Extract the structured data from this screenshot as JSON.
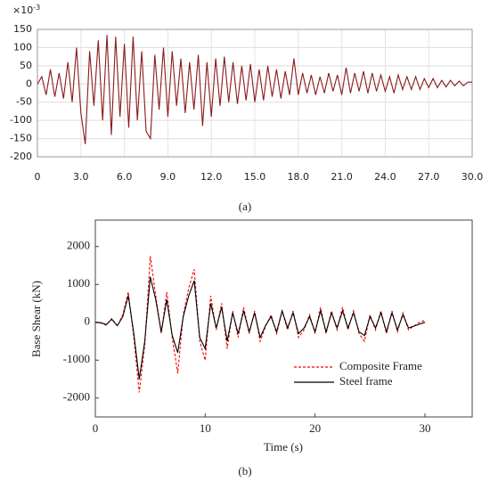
{
  "chart_data": [
    {
      "type": "line",
      "caption": "(a)",
      "y_multiplier": {
        "base": "×10",
        "exponent": "-3"
      },
      "x": [
        0,
        0.3,
        0.6,
        0.9,
        1.2,
        1.5,
        1.8,
        2.1,
        2.4,
        2.7,
        3.0,
        3.3,
        3.6,
        3.9,
        4.2,
        4.5,
        4.8,
        5.1,
        5.4,
        5.7,
        6.0,
        6.3,
        6.6,
        6.9,
        7.2,
        7.5,
        7.8,
        8.1,
        8.4,
        8.7,
        9.0,
        9.3,
        9.6,
        9.9,
        10.2,
        10.5,
        10.8,
        11.1,
        11.4,
        11.7,
        12.0,
        12.3,
        12.6,
        12.9,
        13.2,
        13.5,
        13.8,
        14.1,
        14.4,
        14.7,
        15.0,
        15.3,
        15.6,
        15.9,
        16.2,
        16.5,
        16.8,
        17.1,
        17.4,
        17.7,
        18.0,
        18.3,
        18.6,
        18.9,
        19.2,
        19.5,
        19.8,
        20.1,
        20.4,
        20.7,
        21.0,
        21.3,
        21.6,
        21.9,
        22.2,
        22.5,
        22.8,
        23.1,
        23.4,
        23.7,
        24.0,
        24.3,
        24.6,
        24.9,
        25.2,
        25.5,
        25.8,
        26.1,
        26.4,
        26.7,
        27.0,
        27.3,
        27.6,
        27.9,
        28.2,
        28.5,
        28.8,
        29.1,
        29.4,
        29.7,
        30.0
      ],
      "series": [
        {
          "color": "#8b1a1a",
          "values": [
            0,
            20,
            -30,
            40,
            -35,
            30,
            -40,
            60,
            -50,
            100,
            -80,
            -165,
            90,
            -60,
            120,
            -100,
            135,
            -140,
            130,
            -90,
            110,
            -120,
            130,
            -100,
            90,
            -130,
            -150,
            80,
            -70,
            100,
            -90,
            90,
            -60,
            70,
            -80,
            60,
            -70,
            80,
            -115,
            60,
            -90,
            70,
            -60,
            75,
            -50,
            60,
            -55,
            50,
            -45,
            55,
            -50,
            40,
            -45,
            50,
            -35,
            40,
            -40,
            35,
            -30,
            70,
            -30,
            30,
            -25,
            25,
            -30,
            20,
            -25,
            30,
            -20,
            25,
            -30,
            45,
            -25,
            30,
            -20,
            35,
            -25,
            30,
            -20,
            25,
            -20,
            20,
            -25,
            25,
            -15,
            20,
            -15,
            20,
            -15,
            15,
            -10,
            15,
            -10,
            10,
            -8,
            10,
            -5,
            8,
            -5,
            5,
            5
          ]
        }
      ],
      "xlim": [
        0,
        30
      ],
      "xticks": [
        0,
        {
          "value": 3,
          "label": "3.0"
        },
        {
          "value": 6,
          "label": "6.0"
        },
        {
          "value": 9,
          "label": "9.0"
        },
        {
          "value": 12,
          "label": "12.0"
        },
        {
          "value": 15,
          "label": "15.0"
        },
        {
          "value": 18,
          "label": "18.0"
        },
        {
          "value": 21,
          "label": "21.0"
        },
        {
          "value": 24,
          "label": "24.0"
        },
        {
          "value": 27,
          "label": "27.0"
        },
        {
          "value": 30,
          "label": "30.0"
        }
      ],
      "ylim": [
        -200,
        150
      ],
      "yticks": [
        -200,
        -150,
        -100,
        -50,
        0,
        50,
        100,
        150
      ],
      "grid": true
    },
    {
      "type": "line",
      "caption": "(b)",
      "xlabel": "Time (s)",
      "ylabel": "Base Shear (kN)",
      "x": [
        0,
        0.5,
        1,
        1.5,
        2,
        2.5,
        3,
        3.5,
        4,
        4.5,
        5,
        5.5,
        6,
        6.5,
        7,
        7.5,
        8,
        8.5,
        9,
        9.5,
        10,
        10.5,
        11,
        11.5,
        12,
        12.5,
        13,
        13.5,
        14,
        14.5,
        15,
        15.5,
        16,
        16.5,
        17,
        17.5,
        18,
        18.5,
        19,
        19.5,
        20,
        20.5,
        21,
        21.5,
        22,
        22.5,
        23,
        23.5,
        24,
        24.5,
        25,
        25.5,
        26,
        26.5,
        27,
        27.5,
        28,
        28.5,
        29,
        29.5,
        30
      ],
      "series": [
        {
          "name": "Composite Frame",
          "color": "#ff0000",
          "dashed": true,
          "values": [
            0,
            -20,
            -80,
            100,
            -100,
            200,
            800,
            -400,
            -1850,
            -600,
            1750,
            700,
            -300,
            800,
            -400,
            -1350,
            200,
            900,
            1400,
            -500,
            -1000,
            700,
            -200,
            500,
            -700,
            300,
            -400,
            400,
            -300,
            300,
            -500,
            -100,
            200,
            -300,
            300,
            -200,
            300,
            -400,
            -200,
            200,
            -300,
            400,
            -300,
            300,
            -200,
            400,
            -200,
            300,
            -300,
            -500,
            200,
            -200,
            300,
            -300,
            300,
            -250,
            250,
            -200,
            -100,
            0,
            50
          ]
        },
        {
          "name": "Steel frame",
          "color": "#000000",
          "dashed": false,
          "values": [
            0,
            -10,
            -60,
            80,
            -90,
            150,
            700,
            -300,
            -1500,
            -500,
            1200,
            600,
            -250,
            600,
            -350,
            -800,
            150,
            700,
            1100,
            -400,
            -700,
            500,
            -150,
            400,
            -500,
            250,
            -300,
            300,
            -250,
            250,
            -400,
            -80,
            150,
            -250,
            300,
            -150,
            250,
            -300,
            -150,
            150,
            -250,
            300,
            -250,
            250,
            -150,
            300,
            -150,
            250,
            -250,
            -350,
            150,
            -150,
            250,
            -250,
            250,
            -200,
            200,
            -150,
            -100,
            -50,
            0
          ]
        }
      ],
      "xlim": [
        0,
        34.3
      ],
      "xticks": [
        0,
        10,
        20,
        30
      ],
      "ylim": [
        -2500,
        2700
      ],
      "yticks": [
        -2000,
        -1000,
        0,
        1000,
        2000
      ],
      "grid": false
    }
  ]
}
